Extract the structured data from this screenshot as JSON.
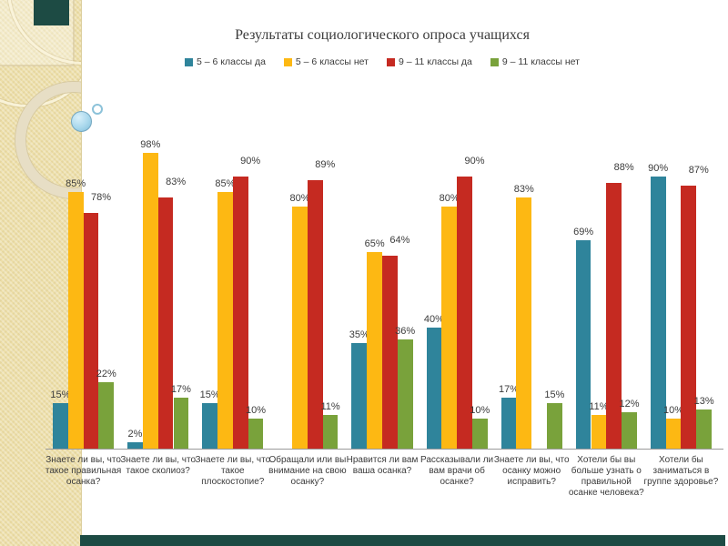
{
  "chart_data": {
    "type": "bar",
    "title": "Результаты социологического опроса учащихся",
    "categories": [
      "Знаете ли вы, что такое правильная осанка?",
      "Знаете ли вы, что такое сколиоз?",
      "Знаете ли вы, что такое плоскостопие?",
      "Обращали или вы внимание на свою осанку?",
      "Нравится ли вам ваша осанка?",
      "Рассказывали ли вам врачи об осанке?",
      "Знаете ли вы, что осанку можно исправить?",
      "Хотели бы вы больше узнать о правильной осанке человека?",
      "Хотели бы заниматься в группе здоровье?"
    ],
    "series": [
      {
        "name": "5 – 6 классы да",
        "color": "#2F849B",
        "values": [
          15,
          2,
          15,
          null,
          35,
          40,
          17,
          69,
          90
        ]
      },
      {
        "name": "5 – 6 классы нет",
        "color": "#FDB813",
        "values": [
          85,
          98,
          85,
          80,
          65,
          80,
          83,
          11,
          10
        ]
      },
      {
        "name": "9 – 11 классы да",
        "color": "#C52A21",
        "values": [
          78,
          83,
          90,
          89,
          64,
          90,
          null,
          88,
          87
        ]
      },
      {
        "name": "9 – 11 классы нет",
        "color": "#79A23B",
        "values": [
          22,
          17,
          10,
          11,
          36,
          10,
          15,
          12,
          13
        ]
      }
    ],
    "value_suffix": "%",
    "ylim": [
      0,
      100
    ],
    "grid": false,
    "legend_position": "top"
  },
  "decor": {
    "accent_color": "#1D4B44",
    "panel_color": "#EDDFA9"
  }
}
